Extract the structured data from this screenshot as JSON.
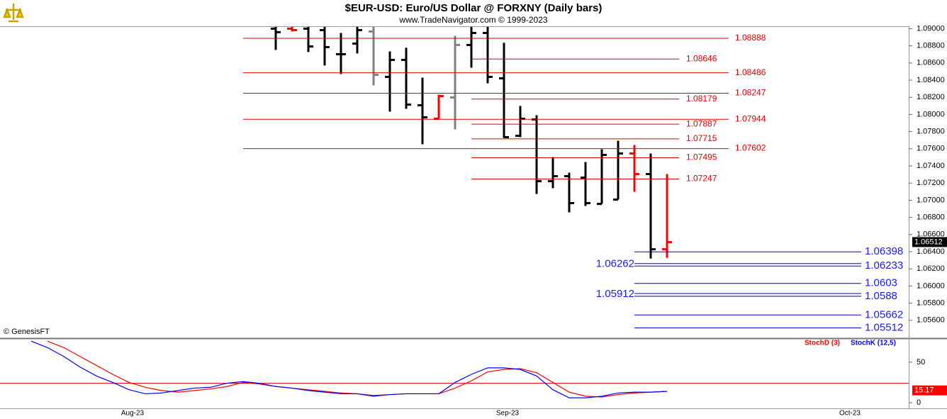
{
  "title": "$EUR-USD:  Euro/US Dollar @ FORXNY  (Daily bars)",
  "subtitle": "www.TradeNavigator.com © 1999-2023",
  "copyright": "© GenesisFT",
  "chart_data": [
    {
      "type": "ohlc",
      "categories": [
        null,
        null,
        null,
        null,
        null,
        null,
        "Aug-23",
        null,
        null,
        null,
        null,
        null,
        null,
        null,
        null,
        null,
        null,
        null,
        null,
        null,
        null,
        null,
        null,
        null,
        null,
        null,
        null,
        null,
        null,
        "Sep-23",
        null,
        null,
        null,
        null,
        null,
        null,
        null,
        null,
        null,
        null,
        null,
        null,
        null,
        null,
        null,
        null,
        null,
        null,
        null,
        null,
        "Oct-23",
        null,
        null,
        null
      ],
      "open": [
        null,
        null,
        null,
        null,
        null,
        null,
        null,
        null,
        null,
        null,
        null,
        null,
        null,
        null,
        null,
        1.09,
        1.09,
        1.09,
        1.08983,
        1.08702,
        1.08826,
        1.08967,
        1.08438,
        1.08636,
        1.08107,
        1.0795,
        1.08198,
        1.0881,
        1.0895,
        1.08421,
        1.07751,
        1.07941,
        1.07222,
        1.0728,
        1.07263,
        1.06957,
        1.07007,
        1.07545,
        1.07305,
        1.06428,
        null,
        null,
        null,
        null,
        null,
        null,
        null,
        null,
        null,
        null,
        null,
        null,
        null,
        null
      ],
      "high": [
        null,
        null,
        null,
        null,
        null,
        null,
        null,
        null,
        null,
        null,
        null,
        null,
        null,
        null,
        null,
        1.0902,
        1.0902,
        1.0902,
        1.0902,
        1.0895,
        1.0902,
        1.0902,
        1.08735,
        1.08777,
        1.08429,
        1.08231,
        1.08917,
        1.0902,
        1.0902,
        1.08835,
        1.08099,
        1.07991,
        1.07503,
        1.07321,
        1.07445,
        1.07594,
        1.07693,
        1.07644,
        1.07545,
        1.07305,
        null,
        null,
        null,
        null,
        null,
        null,
        null,
        null,
        null,
        null,
        null,
        null,
        null,
        null
      ],
      "low": [
        null,
        null,
        null,
        null,
        null,
        null,
        null,
        null,
        null,
        null,
        null,
        null,
        null,
        null,
        null,
        1.08752,
        1.08967,
        1.08727,
        1.0857,
        1.08471,
        1.08711,
        1.08338,
        1.08032,
        1.08065,
        1.07652,
        1.0795,
        1.07826,
        1.08545,
        1.08363,
        1.07726,
        1.07735,
        1.07073,
        1.0714,
        1.06858,
        1.06933,
        1.06957,
        1.07007,
        1.07098,
        1.06321,
        1.06329,
        null,
        null,
        null,
        null,
        null,
        null,
        null,
        null,
        null,
        null,
        null,
        null,
        null,
        null
      ],
      "close": [
        null,
        null,
        null,
        null,
        null,
        null,
        null,
        null,
        null,
        null,
        null,
        null,
        null,
        null,
        null,
        1.08959,
        1.08983,
        1.08793,
        1.08785,
        1.08702,
        1.08983,
        1.08462,
        1.08636,
        1.08115,
        1.07966,
        1.08214,
        1.0881,
        1.0895,
        1.08438,
        1.07735,
        1.0795,
        1.07222,
        1.0728,
        1.06966,
        1.06966,
        1.07528,
        1.07545,
        1.07305,
        1.06428,
        1.06511,
        null,
        null,
        null,
        null,
        null,
        null,
        null,
        null,
        null,
        null,
        null,
        null,
        null,
        null
      ],
      "colors": [
        null,
        null,
        null,
        null,
        null,
        null,
        null,
        null,
        null,
        null,
        null,
        null,
        null,
        null,
        null,
        "#000000",
        "#ff0000",
        "#000000",
        "#000000",
        "#000000",
        "#000000",
        "#808080",
        "#000000",
        "#000000",
        "#000000",
        "#ff0000",
        "#808080",
        "#000000",
        "#000000",
        "#000000",
        "#000000",
        "#000000",
        "#000000",
        "#000000",
        "#000000",
        "#000000",
        "#000000",
        "#ff0000",
        "#000000",
        "#ff0000",
        null,
        null,
        null,
        null,
        null,
        null,
        null,
        null,
        null,
        null,
        null,
        null,
        null,
        null
      ],
      "ylim": [
        1.054,
        1.0902
      ],
      "yticks": [
        {
          "value": 1.09,
          "label": "1.09000"
        },
        {
          "value": 1.088,
          "label": "1.08800"
        },
        {
          "value": 1.086,
          "label": "1.08600"
        },
        {
          "value": 1.084,
          "label": "1.08400"
        },
        {
          "value": 1.082,
          "label": "1.08200"
        },
        {
          "value": 1.08,
          "label": "1.08000"
        },
        {
          "value": 1.078,
          "label": "1.07800"
        },
        {
          "value": 1.076,
          "label": "1.07600"
        },
        {
          "value": 1.074,
          "label": "1.07400"
        },
        {
          "value": 1.072,
          "label": "1.07200"
        },
        {
          "value": 1.07,
          "label": "1.07000"
        },
        {
          "value": 1.068,
          "label": "1.06800"
        },
        {
          "value": 1.066,
          "label": "1.06600"
        },
        {
          "value": 1.064,
          "label": "1.06400"
        },
        {
          "value": 1.062,
          "label": "1.06200"
        },
        {
          "value": 1.06,
          "label": "1.06000"
        },
        {
          "value": 1.058,
          "label": "1.05800"
        },
        {
          "value": 1.056,
          "label": "1.05600"
        }
      ],
      "current_price": 1.06512,
      "red_levels_long": [
        1.08888,
        1.08486,
        1.08247,
        1.07944,
        1.07602
      ],
      "red_levels_short": [
        1.08646,
        1.08179,
        1.07887,
        1.07715,
        1.07495,
        1.07247
      ],
      "blue_levels_right": [
        1.06398,
        1.06233,
        1.0603,
        1.0588,
        1.05662,
        1.05512
      ],
      "blue_levels_left": [
        1.06262,
        1.05912
      ],
      "level_colors": {
        "red": "#dd0000",
        "blue": "#0000cc"
      }
    },
    {
      "type": "line",
      "series": [
        {
          "name": "StochD (3)",
          "color": "#ff0000",
          "values": [
            null,
            76,
            68,
            57,
            46,
            35,
            25,
            19,
            15,
            13,
            15,
            17,
            20,
            25,
            23,
            20,
            18,
            16,
            14,
            12,
            11,
            9,
            10,
            11,
            11,
            11,
            18,
            27,
            38,
            41,
            42,
            37,
            25,
            13,
            8,
            7,
            10,
            12,
            13,
            14,
            null,
            null,
            null,
            null,
            null,
            null,
            null,
            null,
            null,
            null,
            null,
            null,
            null,
            null
          ]
        },
        {
          "name": "StochK (12,5)",
          "color": "#0000ff",
          "values": [
            76,
            68,
            57,
            44,
            33,
            25,
            16,
            11,
            12,
            15,
            18,
            19,
            24,
            26,
            24,
            20,
            18,
            15,
            13,
            11,
            11,
            8,
            10,
            11,
            11,
            11,
            25,
            35,
            43,
            43,
            41,
            33,
            16,
            6,
            6,
            8,
            12,
            13,
            13,
            14,
            null,
            null,
            null,
            null,
            null,
            null,
            null,
            null,
            null,
            null,
            null,
            null,
            null,
            null
          ]
        }
      ],
      "ylim": [
        -7,
        77
      ],
      "yticks": [
        0,
        50
      ],
      "ref_level": 24,
      "current_value": 15.17
    }
  ]
}
